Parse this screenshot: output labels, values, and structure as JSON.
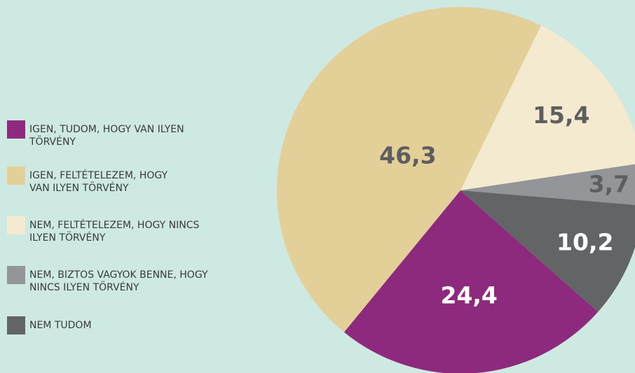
{
  "chart_data": {
    "type": "pie",
    "categories": [
      "IGEN, TUDOM, HOGY VAN ILYEN TÖRVÉNY",
      "IGEN, FELTÉTELEZEM, HOGY VAN ILYEN TÖRVÉNY",
      "NEM, FELTÉTELEZEM, HOGY NINCS ILYEN TÖRVÉNY",
      "NEM, BIZTOS VAGYOK BENNE, HOGY NINCS ILYEN TÖRVÉNY",
      "NEM TUDOM"
    ],
    "values": [
      24.4,
      46.3,
      15.4,
      3.7,
      10.2
    ],
    "value_labels": [
      "24,4",
      "46,3",
      "15,4",
      "3,7",
      "10,2"
    ],
    "colors": [
      "#8e2a7e",
      "#e3cf98",
      "#f3ead0",
      "#939598",
      "#636466"
    ],
    "legend": "left"
  }
}
